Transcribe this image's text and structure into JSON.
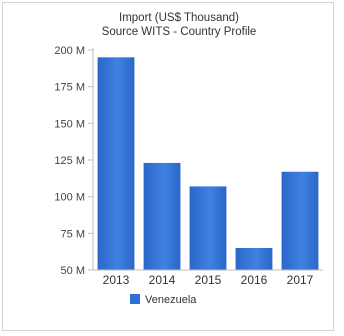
{
  "chart_data": {
    "type": "bar",
    "title": "Import (US$ Thousand)",
    "subtitle": "Source WITS - Country Profile",
    "categories": [
      "2013",
      "2014",
      "2015",
      "2016",
      "2017"
    ],
    "series": [
      {
        "name": "Venezuela",
        "values": [
          195,
          123,
          107,
          65,
          117
        ]
      }
    ],
    "ylim": [
      50,
      200
    ],
    "yticks": [
      50,
      75,
      100,
      125,
      150,
      175,
      200
    ],
    "ytick_labels": [
      "50 M",
      "75 M",
      "100 M",
      "125 M",
      "150 M",
      "175 M",
      "200 M"
    ],
    "grid": false,
    "legend": "bottom-center",
    "colors": {
      "bar": "#2e6fd4",
      "bar_highlight": "#5d97ec",
      "axis": "#bdbdbd"
    }
  }
}
